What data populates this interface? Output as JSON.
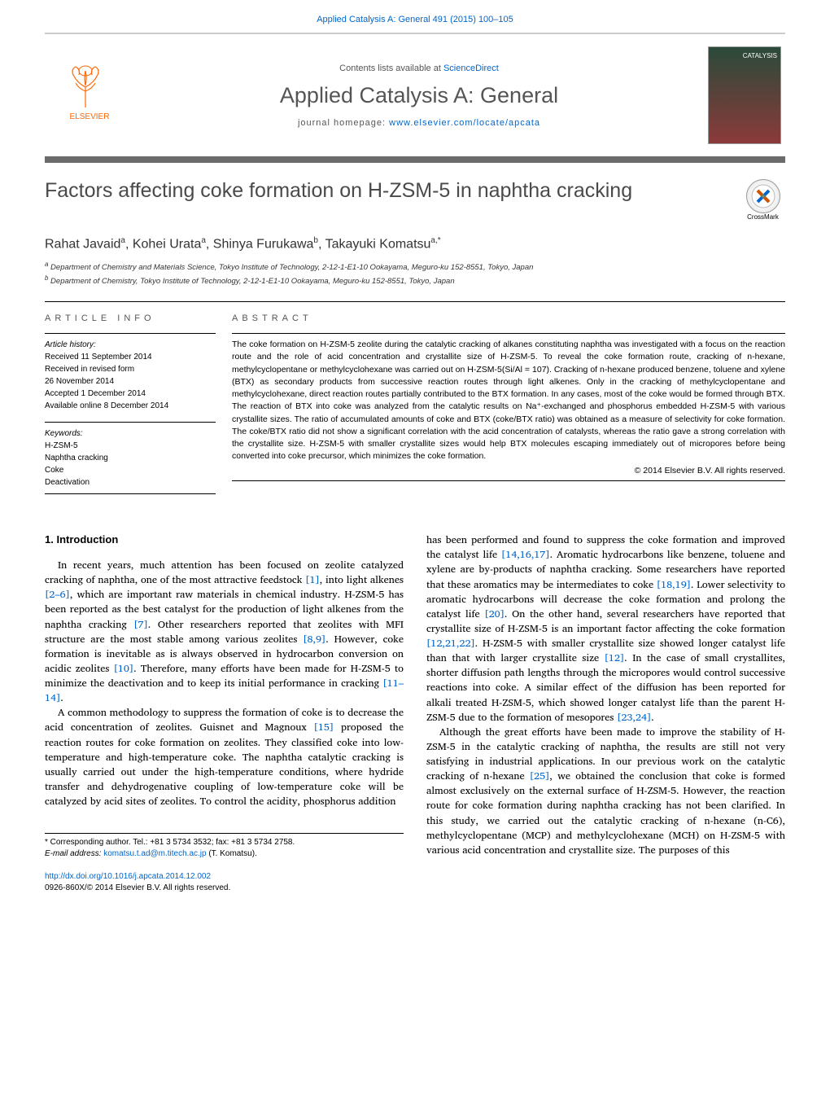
{
  "header": {
    "journal_ref": "Applied Catalysis A: General 491 (2015) 100–105",
    "contents_line_prefix": "Contents lists available at ",
    "contents_line_link": "ScienceDirect",
    "journal_name": "Applied Catalysis A: General",
    "homepage_prefix": "journal homepage: ",
    "homepage_url": "www.elsevier.com/locate/apcata",
    "elsevier_label": "ELSEVIER",
    "cover_label": "CATALYSIS"
  },
  "title": "Factors affecting coke formation on H-ZSM-5 in naphtha cracking",
  "crossmark": "CrossMark",
  "authors_html": "Rahat Javaid<sup>a</sup>, Kohei Urata<sup>a</sup>, Shinya Furukawa<sup>b</sup>, Takayuki Komatsu<sup>a,*</sup>",
  "affiliations": {
    "a": "Department of Chemistry and Materials Science, Tokyo Institute of Technology, 2-12-1-E1-10 Ookayama, Meguro-ku 152-8551, Tokyo, Japan",
    "b": "Department of Chemistry, Tokyo Institute of Technology, 2-12-1-E1-10 Ookayama, Meguro-ku 152-8551, Tokyo, Japan"
  },
  "article_info": {
    "header": "ARTICLE INFO",
    "history_label": "Article history:",
    "received": "Received 11 September 2014",
    "revised": "Received in revised form",
    "revised_date": "26 November 2014",
    "accepted": "Accepted 1 December 2014",
    "online": "Available online 8 December 2014",
    "keywords_label": "Keywords:",
    "keywords": [
      "H-ZSM-5",
      "Naphtha cracking",
      "Coke",
      "Deactivation"
    ]
  },
  "abstract": {
    "header": "ABSTRACT",
    "text": "The coke formation on H-ZSM-5 zeolite during the catalytic cracking of alkanes constituting naphtha was investigated with a focus on the reaction route and the role of acid concentration and crystallite size of H-ZSM-5. To reveal the coke formation route, cracking of n-hexane, methylcyclopentane or methylcyclohexane was carried out on H-ZSM-5(Si/Al = 107). Cracking of n-hexane produced benzene, toluene and xylene (BTX) as secondary products from successive reaction routes through light alkenes. Only in the cracking of methylcyclopentane and methylcyclohexane, direct reaction routes partially contributed to the BTX formation. In any cases, most of the coke would be formed through BTX. The reaction of BTX into coke was analyzed from the catalytic results on Na⁺-exchanged and phosphorus embedded H-ZSM-5 with various crystallite sizes. The ratio of accumulated amounts of coke and BTX (coke/BTX ratio) was obtained as a measure of selectivity for coke formation. The coke/BTX ratio did not show a significant correlation with the acid concentration of catalysts, whereas the ratio gave a strong correlation with the crystallite size. H-ZSM-5 with smaller crystallite sizes would help BTX molecules escaping immediately out of micropores before being converted into coke precursor, which minimizes the coke formation.",
    "copyright": "© 2014 Elsevier B.V. All rights reserved."
  },
  "body": {
    "section_title": "1. Introduction",
    "col1_p1": "In recent years, much attention has been focused on zeolite catalyzed cracking of naphtha, one of the most attractive feedstock [1], into light alkenes [2–6], which are important raw materials in chemical industry. H-ZSM-5 has been reported as the best catalyst for the production of light alkenes from the naphtha cracking [7]. Other researchers reported that zeolites with MFI structure are the most stable among various zeolites [8,9]. However, coke formation is inevitable as is always observed in hydrocarbon conversion on acidic zeolites [10]. Therefore, many efforts have been made for H-ZSM-5 to minimize the deactivation and to keep its initial performance in cracking [11–14].",
    "col1_p2": "A common methodology to suppress the formation of coke is to decrease the acid concentration of zeolites. Guisnet and Magnoux [15] proposed the reaction routes for coke formation on zeolites. They classified coke into low-temperature and high-temperature coke. The naphtha catalytic cracking is usually carried out under the high-temperature conditions, where hydride transfer and dehydrogenative coupling of low-temperature coke will be catalyzed by acid sites of zeolites. To control the acidity, phosphorus addition",
    "col2_p1": "has been performed and found to suppress the coke formation and improved the catalyst life [14,16,17]. Aromatic hydrocarbons like benzene, toluene and xylene are by-products of naphtha cracking. Some researchers have reported that these aromatics may be intermediates to coke [18,19]. Lower selectivity to aromatic hydrocarbons will decrease the coke formation and prolong the catalyst life [20]. On the other hand, several researchers have reported that crystallite size of H-ZSM-5 is an important factor affecting the coke formation [12,21,22]. H-ZSM-5 with smaller crystallite size showed longer catalyst life than that with larger crystallite size [12]. In the case of small crystallites, shorter diffusion path lengths through the micropores would control successive reactions into coke. A similar effect of the diffusion has been reported for alkali treated H-ZSM-5, which showed longer catalyst life than the parent H-ZSM-5 due to the formation of mesopores [23,24].",
    "col2_p2": "Although the great efforts have been made to improve the stability of H-ZSM-5 in the catalytic cracking of naphtha, the results are still not very satisfying in industrial applications. In our previous work on the catalytic cracking of n-hexane [25], we obtained the conclusion that coke is formed almost exclusively on the external surface of H-ZSM-5. However, the reaction route for coke formation during naphtha cracking has not been clarified. In this study, we carried out the catalytic cracking of n-hexane (n-C6), methylcyclopentane (MCP) and methylcyclohexane (MCH) on H-ZSM-5 with various acid concentration and crystallite size. The purposes of this"
  },
  "citations": {
    "c1": "[1]",
    "c2_6": "[2–6]",
    "c7": "[7]",
    "c8_9": "[8,9]",
    "c10": "[10]",
    "c11_14": "[11–14]",
    "c15": "[15]",
    "c14_16_17": "[14,16,17]",
    "c18_19": "[18,19]",
    "c20": "[20]",
    "c12_21_22": "[12,21,22]",
    "c12": "[12]",
    "c23_24": "[23,24]",
    "c25": "[25]"
  },
  "footnote": {
    "corresponding": "* Corresponding author. Tel.: +81 3 5734 3532; fax: +81 3 5734 2758.",
    "email_label": "E-mail address: ",
    "email": "komatsu.t.ad@m.titech.ac.jp",
    "email_who": " (T. Komatsu)."
  },
  "doi": {
    "url": "http://dx.doi.org/10.1016/j.apcata.2014.12.002",
    "issn_copyright": "0926-860X/© 2014 Elsevier B.V. All rights reserved."
  },
  "colors": {
    "link": "#0066cc",
    "elsevier_orange": "#ff6600",
    "gray_text": "#555555",
    "banner_border": "#6b6b6b"
  }
}
